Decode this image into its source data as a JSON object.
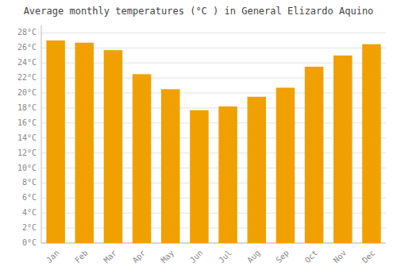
{
  "chart_data": {
    "type": "bar",
    "title": "Average monthly temperatures (°C ) in General Elizardo Aquino",
    "categories": [
      "Jan",
      "Feb",
      "Mar",
      "Apr",
      "May",
      "Jun",
      "Jul",
      "Aug",
      "Sep",
      "Oct",
      "Nov",
      "Dec"
    ],
    "values": [
      27.0,
      26.7,
      25.7,
      22.5,
      20.5,
      17.7,
      18.2,
      19.5,
      20.7,
      23.5,
      25.0,
      26.5
    ],
    "color": "#F0A000",
    "ylim": [
      0,
      29
    ],
    "yticks": [
      {
        "value": 0,
        "label": "0°C"
      },
      {
        "value": 2,
        "label": "2°C"
      },
      {
        "value": 4,
        "label": "4°C"
      },
      {
        "value": 6,
        "label": "6°C"
      },
      {
        "value": 8,
        "label": "8°C"
      },
      {
        "value": 10,
        "label": "10°C"
      },
      {
        "value": 12,
        "label": "12°C"
      },
      {
        "value": 14,
        "label": "14°C"
      },
      {
        "value": 16,
        "label": "16°C"
      },
      {
        "value": 18,
        "label": "18°C"
      },
      {
        "value": 20,
        "label": "20°C"
      },
      {
        "value": 22,
        "label": "22°C"
      },
      {
        "value": 24,
        "label": "24°C"
      },
      {
        "value": 26,
        "label": "26°C"
      },
      {
        "value": 28,
        "label": "28°C"
      }
    ],
    "grid": true
  }
}
